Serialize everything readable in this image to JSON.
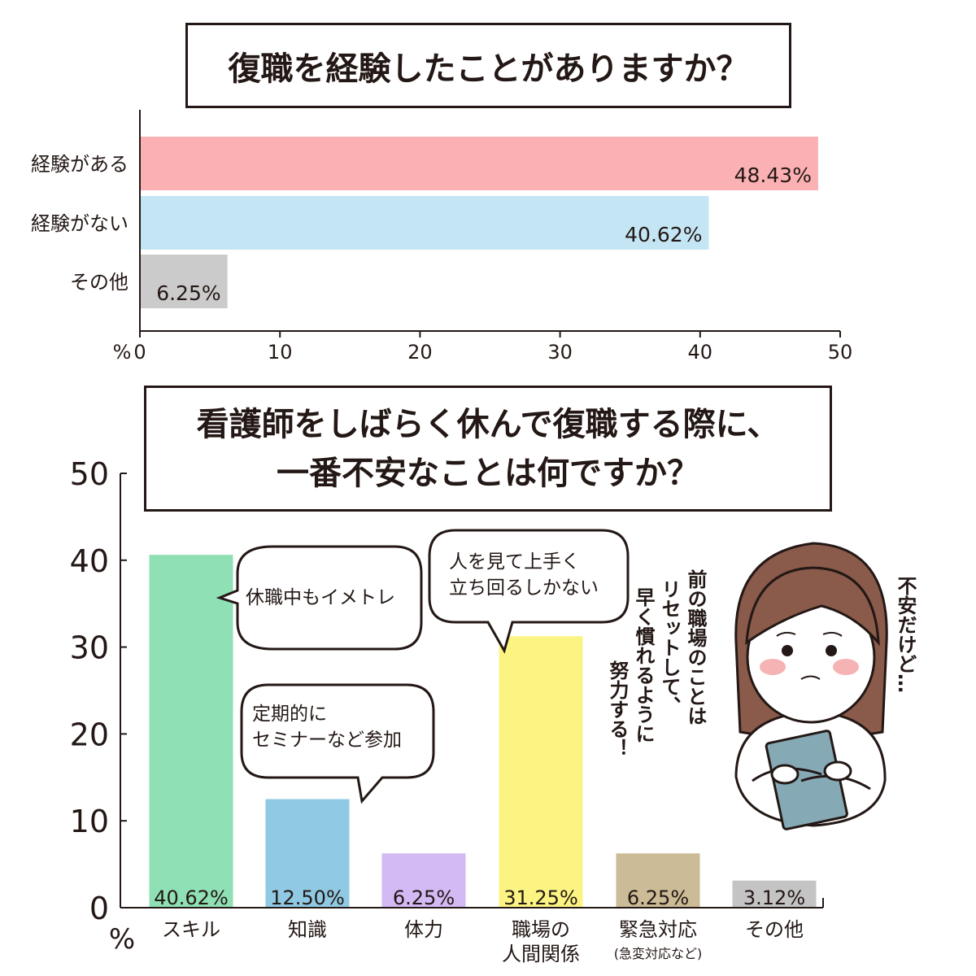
{
  "chart_data": [
    {
      "type": "bar",
      "orientation": "horizontal",
      "title": "復職を経験したことがありますか？",
      "categories": [
        "経験がある",
        "経験がない",
        "その他"
      ],
      "values": [
        48.43,
        40.62,
        6.25
      ],
      "value_labels": [
        "48.43%",
        "40.62%",
        "6.25%"
      ],
      "colors": [
        "#fbb1b3",
        "#c4e6f4",
        "#cbcbcb"
      ],
      "xlabel": "%",
      "xlim": [
        0,
        50
      ],
      "xticks": [
        "0",
        "10",
        "20",
        "30",
        "40",
        "50"
      ],
      "grid": false
    },
    {
      "type": "bar",
      "orientation": "vertical",
      "title_lines": [
        "看護師をしばらく休んで復職する際に、",
        "一番不安なことは何ですか？"
      ],
      "categories": [
        {
          "label": "スキル",
          "sub": ""
        },
        {
          "label": "知識",
          "sub": ""
        },
        {
          "label": "体力",
          "sub": ""
        },
        {
          "label": "職場の\n人間関係",
          "sub": ""
        },
        {
          "label": "緊急対応",
          "sub": "(急変対応など)"
        },
        {
          "label": "その他",
          "sub": ""
        }
      ],
      "values": [
        40.62,
        12.5,
        6.25,
        31.25,
        6.25,
        3.12
      ],
      "value_labels": [
        "40.62%",
        "12.50%",
        "6.25%",
        "31.25%",
        "6.25%",
        "3.12%"
      ],
      "colors": [
        "#8fe0b5",
        "#8fc9e3",
        "#d3baf4",
        "#fcf482",
        "#cbbb96",
        "#c4c4c4"
      ],
      "ylabel": "%",
      "ylim": [
        0,
        50
      ],
      "yticks": [
        "0",
        "10",
        "20",
        "30",
        "40",
        "50"
      ],
      "grid": false
    }
  ],
  "bubbles": [
    {
      "lines": [
        "休職中もイメトレ"
      ]
    },
    {
      "lines": [
        "定期的に",
        "セミナーなど参加"
      ]
    },
    {
      "lines": [
        "人を見て上手く",
        "立ち回るしかない"
      ]
    }
  ],
  "character": {
    "speech_columns": [
      "前の職場のことは",
      "リセットして、",
      "早く慣れるように",
      "努力する！"
    ],
    "thought_column": "不安だけど…"
  }
}
